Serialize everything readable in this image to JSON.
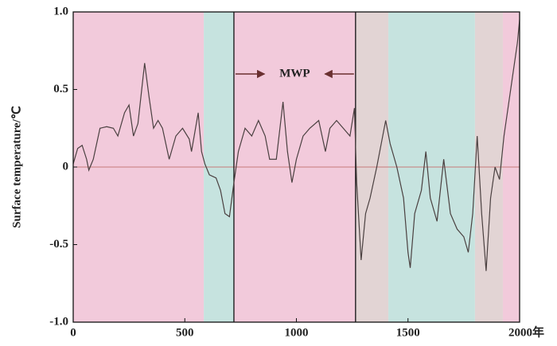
{
  "chart_data": {
    "type": "line",
    "y_label": "Surface temperature/℃",
    "annotation": "MWP",
    "xlim": [
      0,
      2000
    ],
    "ylim": [
      -1.0,
      1.0
    ],
    "xticks": [
      0,
      500,
      1000,
      1500,
      {
        "value": 2000,
        "label": "2000年"
      }
    ],
    "yticks": [
      {
        "value": 1.0,
        "label": "1.0"
      },
      0.5,
      0,
      -0.5,
      {
        "value": -1.0,
        "label": "-1.0"
      }
    ],
    "bands": [
      {
        "start": 0,
        "end": 585,
        "color": "#f2cadb"
      },
      {
        "start": 585,
        "end": 720,
        "color": "#c6e3df"
      },
      {
        "start": 720,
        "end": 1265,
        "color": "#f2cadb"
      },
      {
        "start": 1265,
        "end": 1412,
        "color": "#e2d4d4"
      },
      {
        "start": 1412,
        "end": 1800,
        "color": "#c6e3df"
      },
      {
        "start": 1800,
        "end": 1925,
        "color": "#e2d4d4"
      },
      {
        "start": 1925,
        "end": 2000,
        "color": "#f2cadb"
      }
    ],
    "vlines": [
      720,
      1265
    ],
    "reference_line": 0,
    "reference_color": "#c77a7a",
    "series": [
      {
        "color": "#4a4040",
        "x": [
          0,
          20,
          40,
          60,
          70,
          90,
          120,
          150,
          180,
          200,
          230,
          250,
          270,
          290,
          320,
          340,
          360,
          380,
          400,
          430,
          460,
          490,
          520,
          530,
          560,
          575,
          590,
          610,
          640,
          660,
          680,
          700,
          720,
          740,
          770,
          800,
          830,
          860,
          880,
          910,
          940,
          960,
          980,
          1000,
          1030,
          1060,
          1100,
          1130,
          1150,
          1180,
          1210,
          1240,
          1260,
          1270,
          1290,
          1310,
          1330,
          1360,
          1380,
          1400,
          1420,
          1450,
          1480,
          1500,
          1510,
          1530,
          1560,
          1580,
          1600,
          1630,
          1660,
          1690,
          1720,
          1750,
          1770,
          1790,
          1810,
          1830,
          1850,
          1870,
          1890,
          1910,
          1930,
          1960,
          1990,
          2000
        ],
        "values": [
          0.02,
          0.12,
          0.14,
          0.05,
          -0.02,
          0.05,
          0.25,
          0.26,
          0.25,
          0.2,
          0.35,
          0.4,
          0.2,
          0.28,
          0.67,
          0.45,
          0.25,
          0.3,
          0.25,
          0.05,
          0.2,
          0.25,
          0.18,
          0.1,
          0.35,
          0.1,
          0.02,
          -0.05,
          -0.07,
          -0.15,
          -0.3,
          -0.32,
          -0.1,
          0.1,
          0.25,
          0.2,
          0.3,
          0.2,
          0.05,
          0.05,
          0.42,
          0.1,
          -0.1,
          0.05,
          0.2,
          0.25,
          0.3,
          0.1,
          0.25,
          0.3,
          0.25,
          0.2,
          0.38,
          -0.1,
          -0.6,
          -0.3,
          -0.2,
          0,
          0.15,
          0.3,
          0.15,
          0,
          -0.2,
          -0.55,
          -0.65,
          -0.3,
          -0.15,
          0.1,
          -0.2,
          -0.35,
          0.05,
          -0.3,
          -0.4,
          -0.45,
          -0.55,
          -0.3,
          0.2,
          -0.3,
          -0.67,
          -0.2,
          0,
          -0.08,
          0.2,
          0.5,
          0.8,
          0.95
        ]
      }
    ]
  }
}
